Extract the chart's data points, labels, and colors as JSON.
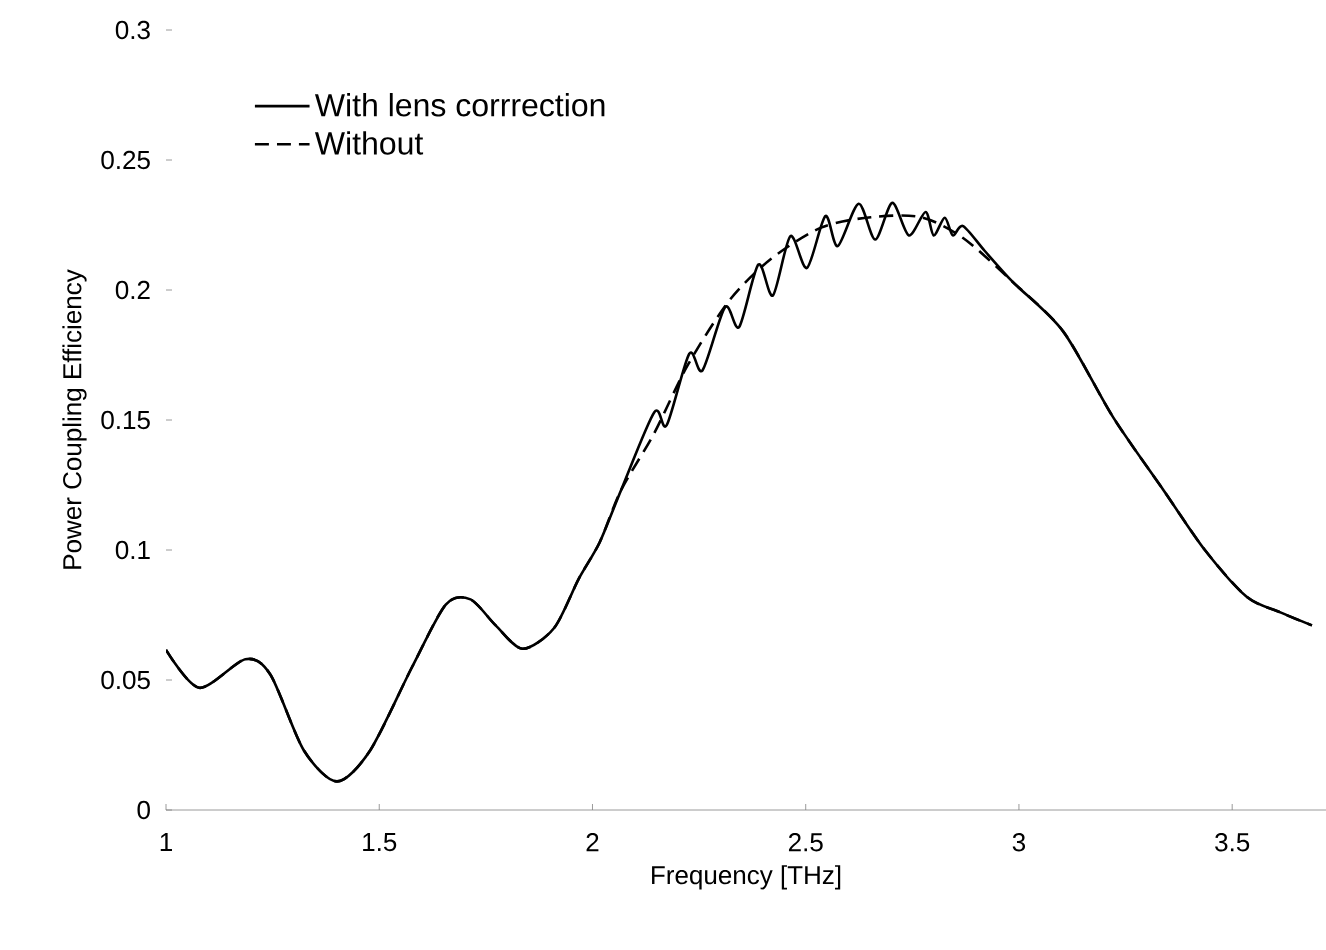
{
  "chart_data": {
    "type": "line",
    "xlabel": "Frequency [THz]",
    "ylabel": "Power Coupling Efficiency",
    "xlim": [
      1,
      3.72
    ],
    "ylim": [
      0,
      0.3
    ],
    "xticks": [
      1,
      1.5,
      2,
      2.5,
      3,
      3.5
    ],
    "yticks": [
      0,
      0.05,
      0.1,
      0.15,
      0.2,
      0.25,
      0.3
    ],
    "legend": "top left",
    "grid": false,
    "marker": "none",
    "series": [
      {
        "name": "With lens corrrection",
        "color": "#000000",
        "line_style": "solid",
        "x": [
          1.0,
          1.078,
          1.186,
          1.245,
          1.323,
          1.401,
          1.479,
          1.577,
          1.656,
          1.714,
          1.773,
          1.836,
          1.91,
          1.968,
          2.017,
          2.067,
          2.145,
          2.174,
          2.227,
          2.258,
          2.311,
          2.344,
          2.389,
          2.423,
          2.464,
          2.503,
          2.546,
          2.575,
          2.624,
          2.663,
          2.703,
          2.742,
          2.781,
          2.8,
          2.826,
          2.845,
          2.869,
          2.92,
          2.986,
          3.104,
          3.221,
          3.339,
          3.436,
          3.534,
          3.613,
          3.687
        ],
        "values": [
          0.0616,
          0.047,
          0.058,
          0.052,
          0.023,
          0.011,
          0.023,
          0.055,
          0.079,
          0.081,
          0.071,
          0.062,
          0.07,
          0.089,
          0.103,
          0.123,
          0.153,
          0.148,
          0.1755,
          0.1691,
          0.1934,
          0.1858,
          0.2098,
          0.1979,
          0.2207,
          0.2085,
          0.2284,
          0.2169,
          0.2332,
          0.2194,
          0.2335,
          0.221,
          0.23,
          0.221,
          0.2278,
          0.221,
          0.2246,
          0.215,
          0.203,
          0.184,
          0.151,
          0.123,
          0.1,
          0.082,
          0.076,
          0.071
        ]
      },
      {
        "name": "Without",
        "color": "#000000",
        "line_style": "dashed",
        "x": [
          1.0,
          1.078,
          1.186,
          1.245,
          1.323,
          1.401,
          1.479,
          1.577,
          1.656,
          1.714,
          1.773,
          1.836,
          1.91,
          1.968,
          2.017,
          2.067,
          2.145,
          2.223,
          2.321,
          2.419,
          2.536,
          2.653,
          2.77,
          2.869,
          2.986,
          3.104,
          3.221,
          3.339,
          3.436,
          3.534,
          3.613,
          3.687
        ],
        "values": [
          0.0616,
          0.047,
          0.058,
          0.052,
          0.023,
          0.011,
          0.023,
          0.055,
          0.079,
          0.081,
          0.071,
          0.062,
          0.07,
          0.089,
          0.103,
          0.123,
          0.145,
          0.171,
          0.196,
          0.212,
          0.224,
          0.228,
          0.228,
          0.22,
          0.203,
          0.184,
          0.151,
          0.123,
          0.1,
          0.082,
          0.076,
          0.071
        ]
      }
    ]
  }
}
